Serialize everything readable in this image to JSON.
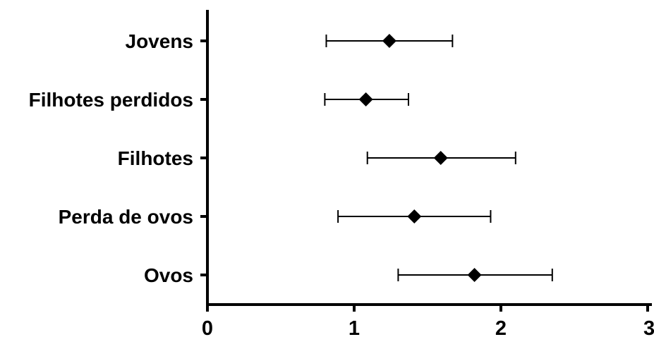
{
  "chart_data": {
    "type": "forest",
    "title": "",
    "xlabel": "",
    "ylabel": "",
    "xlim": [
      0,
      3
    ],
    "x_ticks": [
      "0",
      "1",
      "2",
      "3"
    ],
    "categories": [
      "Jovens",
      "Filhotes perdidos",
      "Filhotes",
      "Perda de ovos",
      "Ovos"
    ],
    "series": [
      {
        "values": [
          1.24,
          1.08,
          1.59,
          1.41,
          1.82
        ],
        "ci_low": [
          0.81,
          0.8,
          1.09,
          0.89,
          1.3
        ],
        "ci_high": [
          1.67,
          1.37,
          2.1,
          1.93,
          2.35
        ]
      }
    ],
    "marker": "diamond",
    "marker_color": "#000000",
    "grid": false
  }
}
